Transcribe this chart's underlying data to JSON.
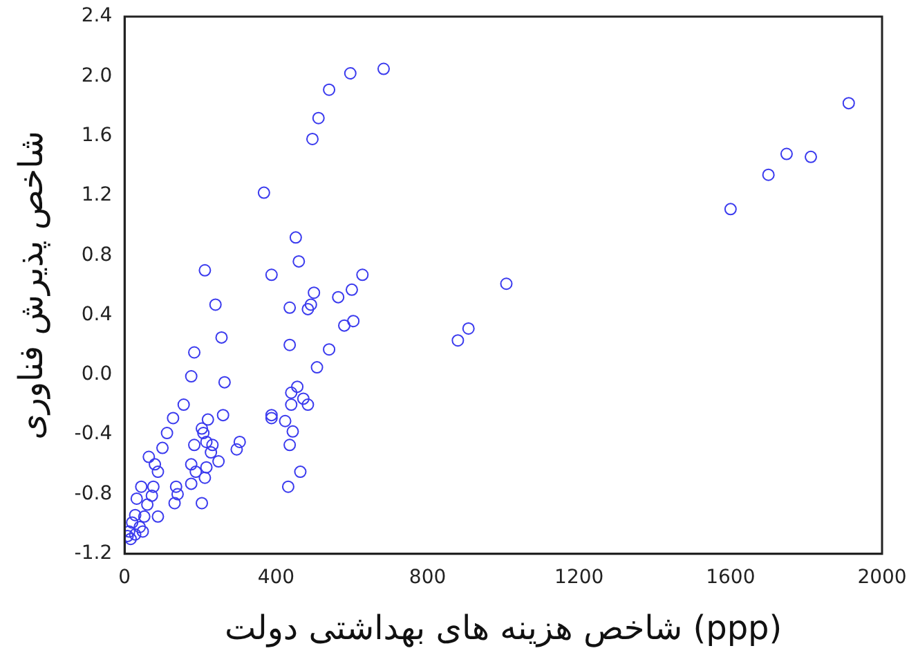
{
  "chart_data": {
    "type": "scatter",
    "xlabel": "شاخص هزینه های بهداشتی دولت (ppp)",
    "ylabel": "شاخص پذیرش فناوری",
    "marker": "circle",
    "grid": false,
    "legend": false,
    "xlim": [
      0,
      2000
    ],
    "xticks": [
      0,
      400,
      800,
      1200,
      1600,
      2000
    ],
    "ylim": [
      -1.2,
      2.4
    ],
    "yticks": [
      {
        "value": -1.2,
        "label": "-1.2"
      },
      {
        "value": -0.8,
        "label": "-0.8"
      },
      {
        "value": -0.4,
        "label": "-0.4"
      },
      {
        "value": 0,
        "label": "0.0"
      },
      {
        "value": 0.4,
        "label": "0.4"
      },
      {
        "value": 0.8,
        "label": "0.8"
      },
      {
        "value": 1.2,
        "label": "1.2"
      },
      {
        "value": 1.6,
        "label": "1.6"
      },
      {
        "value": 2,
        "label": "2.0"
      },
      {
        "value": 2.4,
        "label": "2.4"
      }
    ],
    "series": [
      {
        "color": "#3a3aee",
        "x": [
          684,
          596,
          540,
          512,
          496,
          368,
          1912,
          1748,
          1812,
          1700,
          1600,
          1008,
          908,
          880,
          452,
          460,
          388,
          212,
          628,
          500,
          600,
          564,
          436,
          484,
          492,
          240,
          580,
          604,
          256,
          184,
          436,
          540,
          508,
          176,
          264,
          456,
          440,
          472,
          484,
          440,
          156,
          260,
          128,
          388,
          388,
          424,
          220,
          204,
          112,
          444,
          208,
          304,
          184,
          216,
          232,
          436,
          100,
          296,
          228,
          64,
          248,
          176,
          80,
          88,
          188,
          216,
          464,
          212,
          176,
          432,
          44,
          76,
          136,
          140,
          72,
          32,
          132,
          204,
          60,
          88,
          52,
          28,
          20,
          40,
          12,
          28,
          8,
          48,
          16
        ],
        "values": [
          2.05,
          2.02,
          1.91,
          1.72,
          1.58,
          1.22,
          1.82,
          1.48,
          1.46,
          1.34,
          1.11,
          0.61,
          0.31,
          0.23,
          0.92,
          0.76,
          0.67,
          0.7,
          0.67,
          0.55,
          0.57,
          0.52,
          0.45,
          0.44,
          0.47,
          0.47,
          0.33,
          0.36,
          0.25,
          0.15,
          0.2,
          0.17,
          0.05,
          -0.01,
          -0.05,
          -0.08,
          -0.12,
          -0.16,
          -0.2,
          -0.2,
          -0.2,
          -0.27,
          -0.29,
          -0.27,
          -0.29,
          -0.31,
          -0.3,
          -0.36,
          -0.39,
          -0.38,
          -0.39,
          -0.45,
          -0.47,
          -0.45,
          -0.47,
          -0.47,
          -0.49,
          -0.5,
          -0.52,
          -0.55,
          -0.58,
          -0.6,
          -0.6,
          -0.65,
          -0.65,
          -0.62,
          -0.65,
          -0.69,
          -0.73,
          -0.75,
          -0.75,
          -0.75,
          -0.75,
          -0.8,
          -0.81,
          -0.83,
          -0.86,
          -0.86,
          -0.87,
          -0.95,
          -0.95,
          -0.94,
          -0.99,
          -1.02,
          -1.05,
          -1.07,
          -1.08,
          -1.05,
          -1.1
        ]
      }
    ]
  }
}
